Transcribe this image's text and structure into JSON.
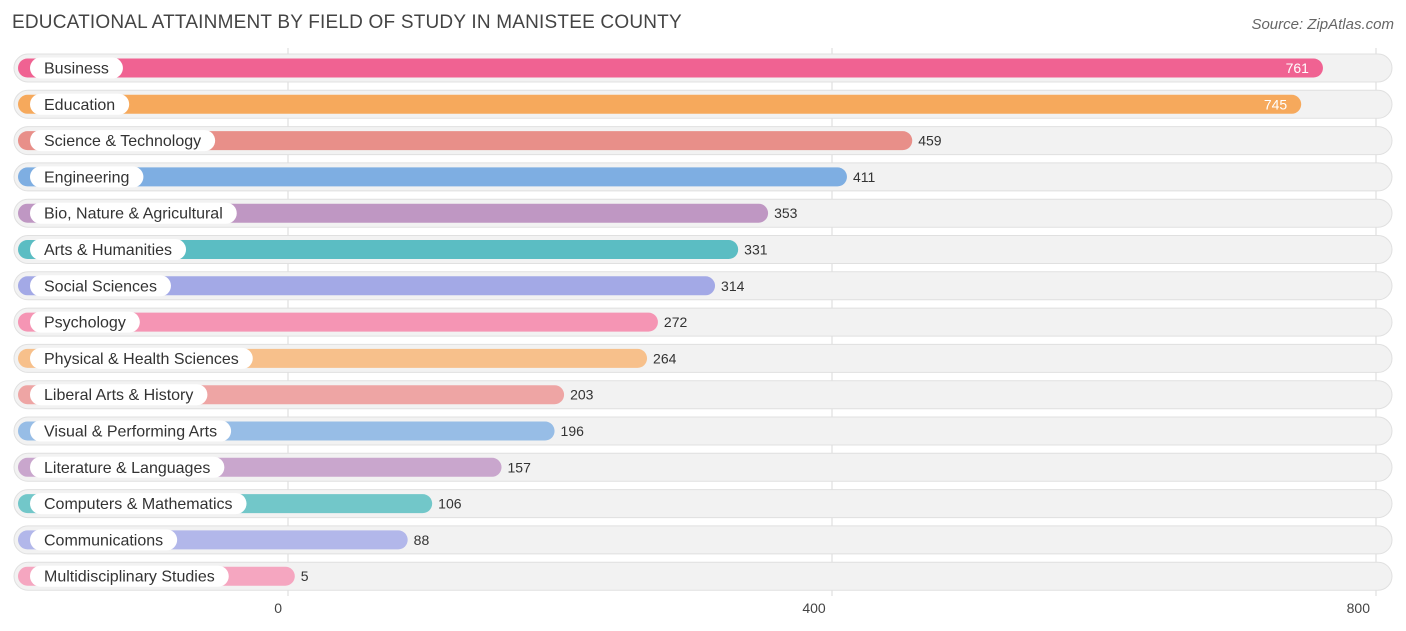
{
  "chart_data": {
    "type": "bar",
    "orientation": "horizontal",
    "title": "EDUCATIONAL ATTAINMENT BY FIELD OF STUDY IN MANISTEE COUNTY",
    "source": "Source: ZipAtlas.com",
    "categories": [
      "Business",
      "Education",
      "Science & Technology",
      "Engineering",
      "Bio, Nature & Agricultural",
      "Arts & Humanities",
      "Social Sciences",
      "Psychology",
      "Physical & Health Sciences",
      "Liberal Arts & History",
      "Visual & Performing Arts",
      "Literature & Languages",
      "Computers & Mathematics",
      "Communications",
      "Multidisciplinary Studies"
    ],
    "values": [
      761,
      745,
      459,
      411,
      353,
      331,
      314,
      272,
      264,
      203,
      196,
      157,
      106,
      88,
      5
    ],
    "value_labels": [
      "761",
      "745",
      "459",
      "411",
      "353",
      "331",
      "314",
      "272",
      "264",
      "203",
      "196",
      "157",
      "106",
      "88",
      "5"
    ],
    "colors": [
      "#f06292",
      "#f6a95c",
      "#e88f89",
      "#7eaee2",
      "#bf97c3",
      "#5bbdc3",
      "#a3a9e6",
      "#f595b4",
      "#f7c08b",
      "#eea5a4",
      "#97bde6",
      "#c9a6cd",
      "#72c7c9",
      "#b2b7ea",
      "#f5a6c0"
    ],
    "xlim": [
      0,
      800
    ],
    "xticks": [
      "0",
      "400",
      "800"
    ],
    "grid": true
  }
}
